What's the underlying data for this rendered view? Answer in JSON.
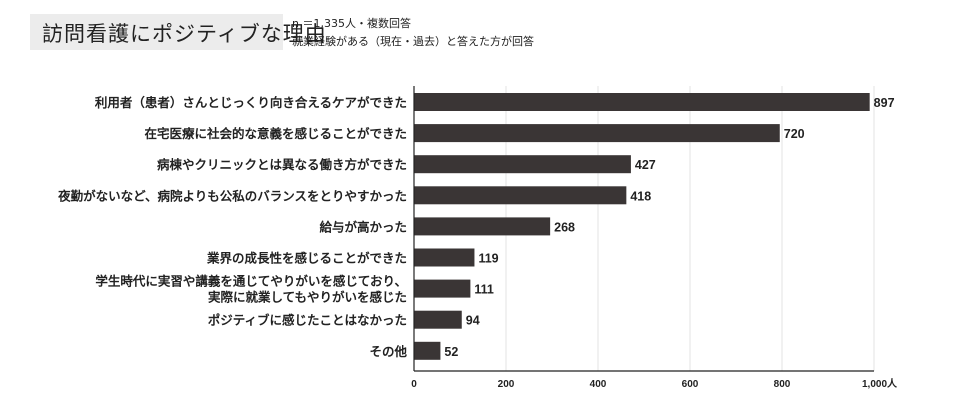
{
  "header": {
    "title": "訪問看護にポジティブな理由",
    "note1": "n ＝1,335人・複数回答",
    "note2": "就業経験がある（現在・過去）と答えた方が回答"
  },
  "chart_data": {
    "type": "bar",
    "orientation": "horizontal",
    "categories": [
      [
        "利用者（患者）さんとじっくり向き合えるケアができた"
      ],
      [
        "在宅医療に社会的な意義を感じることができた"
      ],
      [
        "病棟やクリニックとは異なる働き方ができた"
      ],
      [
        "夜勤がないなど、病院よりも公私のバランスをとりやすかった"
      ],
      [
        "給与が高かった"
      ],
      [
        "業界の成長性を感じることができた"
      ],
      [
        "学生時代に実習や講義を通じてやりがいを感じており、",
        "実際に就業してもやりがいを感じた"
      ],
      [
        "ポジティブに感じたことはなかった"
      ],
      [
        "その他"
      ]
    ],
    "values": [
      897,
      720,
      427,
      418,
      268,
      119,
      111,
      94,
      52
    ],
    "xlim": [
      0,
      1000
    ],
    "xticks": [
      "0",
      "200",
      "400",
      "600",
      "800",
      "1,000人"
    ],
    "xtick_values": [
      0,
      200,
      400,
      600,
      800,
      1000
    ],
    "grid": true,
    "bar_color": "#3a3535"
  }
}
